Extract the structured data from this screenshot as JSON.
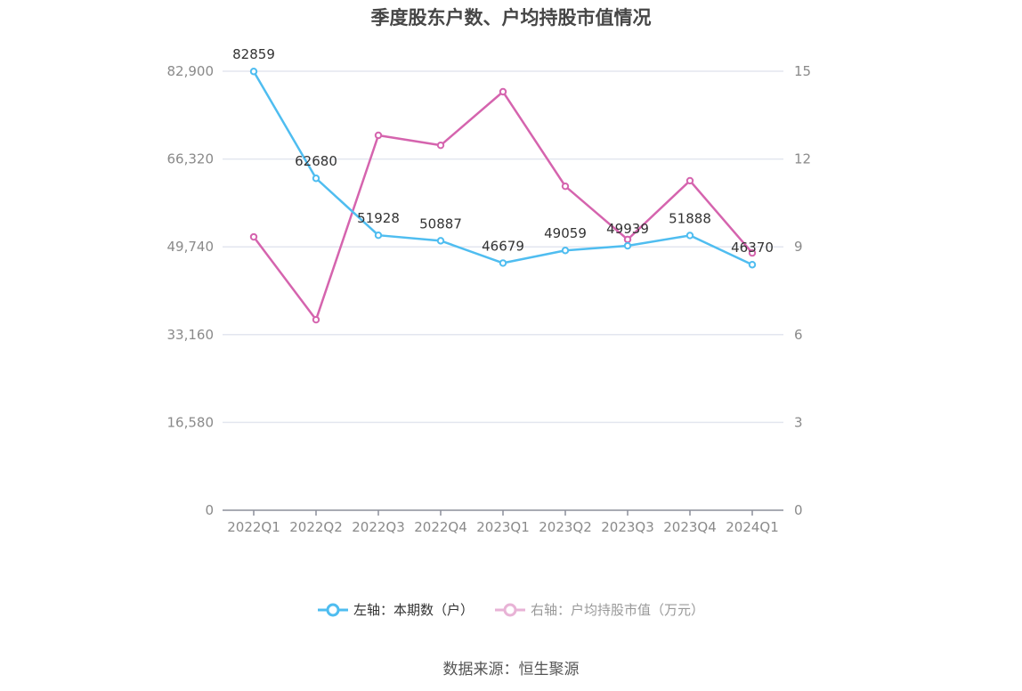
{
  "title": "季度股东户数、户均持股市值情况",
  "legend": {
    "left_label": "左轴：本期数（户）",
    "right_label": "右轴：户均持股市值（万元）",
    "left_color": "#4fbdf0",
    "right_color": "#d564ae"
  },
  "source": "数据来源：恒生聚源",
  "chart_data": {
    "type": "line",
    "title": "季度股东户数、户均持股市值情况",
    "categories": [
      "2022Q1",
      "2022Q2",
      "2022Q3",
      "2022Q4",
      "2023Q1",
      "2023Q2",
      "2023Q3",
      "2023Q4",
      "2024Q1"
    ],
    "series": [
      {
        "name": "左轴：本期数（户）",
        "axis": "left",
        "color": "#4fbdf0",
        "values": [
          82859,
          62680,
          51928,
          50887,
          46679,
          49059,
          49939,
          51888,
          46370
        ],
        "data_labels": true
      },
      {
        "name": "右轴：户均持股市值（万元）",
        "axis": "right",
        "color": "#d564ae",
        "values": [
          9.34,
          6.51,
          12.81,
          12.47,
          14.3,
          11.07,
          9.25,
          11.26,
          8.79
        ],
        "data_labels": false
      }
    ],
    "left_axis": {
      "ticks": [
        "0",
        "16,580",
        "33,160",
        "49,740",
        "66,320",
        "82,900"
      ],
      "range": [
        0,
        82900
      ]
    },
    "right_axis": {
      "ticks": [
        "0",
        "3",
        "6",
        "9",
        "12",
        "15"
      ],
      "range": [
        0,
        15
      ]
    },
    "grid": true,
    "legend_position": "bottom"
  }
}
